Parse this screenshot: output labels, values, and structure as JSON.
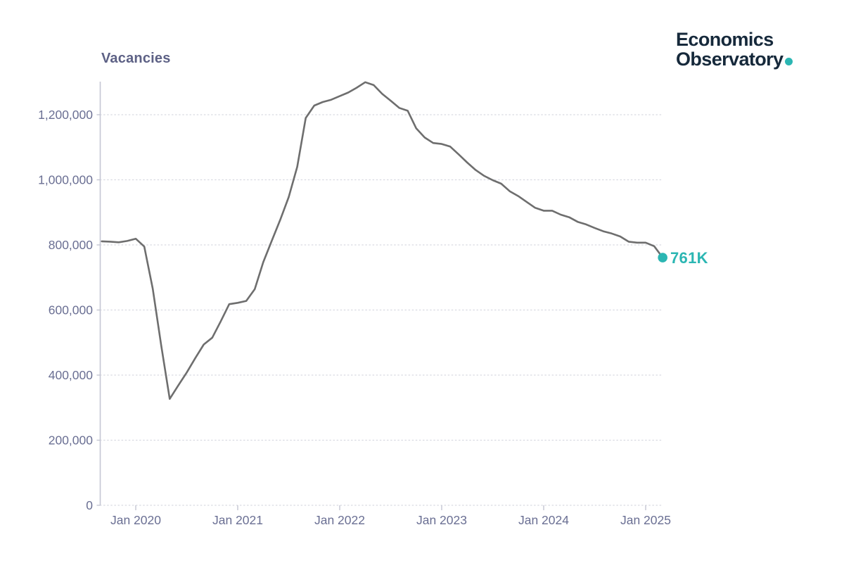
{
  "header": {
    "title": "Vacancies",
    "brand": {
      "line1": "Economics",
      "line2": "Observatory"
    }
  },
  "colors": {
    "accent_teal": "#2bb6b3",
    "line_gray": "#6e6e6e",
    "brand_navy": "#16293b",
    "axis_gray": "#c4c6d3",
    "grid_gray": "#d8d9e1",
    "label_purple_gray": "#6a6f93"
  },
  "chart_data": {
    "type": "line",
    "title": "Vacancies",
    "xlabel": "",
    "ylabel": "Vacancies",
    "legend": "none",
    "grid": "dotted horizontal",
    "ylim": [
      0,
      1300000
    ],
    "x_unit": "month",
    "x": [
      "2019-09",
      "2019-10",
      "2019-11",
      "2019-12",
      "2020-01",
      "2020-02",
      "2020-03",
      "2020-04",
      "2020-05",
      "2020-06",
      "2020-07",
      "2020-08",
      "2020-09",
      "2020-10",
      "2020-11",
      "2020-12",
      "2021-01",
      "2021-02",
      "2021-03",
      "2021-04",
      "2021-05",
      "2021-06",
      "2021-07",
      "2021-08",
      "2021-09",
      "2021-10",
      "2021-11",
      "2021-12",
      "2022-01",
      "2022-02",
      "2022-03",
      "2022-04",
      "2022-05",
      "2022-06",
      "2022-07",
      "2022-08",
      "2022-09",
      "2022-10",
      "2022-11",
      "2022-12",
      "2023-01",
      "2023-02",
      "2023-03",
      "2023-04",
      "2023-05",
      "2023-06",
      "2023-07",
      "2023-08",
      "2023-09",
      "2023-10",
      "2023-11",
      "2023-12",
      "2024-01",
      "2024-02",
      "2024-03",
      "2024-04",
      "2024-05",
      "2024-06",
      "2024-07",
      "2024-08",
      "2024-09",
      "2024-10",
      "2024-11",
      "2024-12",
      "2025-01",
      "2025-02",
      "2025-03"
    ],
    "values": [
      811000,
      810000,
      808000,
      812000,
      819000,
      795000,
      665000,
      490000,
      327000,
      368000,
      408000,
      452000,
      494000,
      515000,
      565000,
      618000,
      622000,
      628000,
      664000,
      747000,
      812000,
      877000,
      947000,
      1040000,
      1190000,
      1228000,
      1239000,
      1246000,
      1257000,
      1268000,
      1283000,
      1300000,
      1291000,
      1264000,
      1243000,
      1221000,
      1212000,
      1158000,
      1130000,
      1113000,
      1110000,
      1102000,
      1078000,
      1053000,
      1030000,
      1012000,
      999000,
      988000,
      965000,
      950000,
      932000,
      914000,
      905000,
      905000,
      893000,
      885000,
      871000,
      863000,
      852000,
      842000,
      835000,
      826000,
      810000,
      807000,
      807000,
      796000,
      761000
    ],
    "y_ticks": [
      {
        "value": 0,
        "label": "0"
      },
      {
        "value": 200000,
        "label": "200,000"
      },
      {
        "value": 400000,
        "label": "400,000"
      },
      {
        "value": 600000,
        "label": "600,000"
      },
      {
        "value": 800000,
        "label": "800,000"
      },
      {
        "value": 1000000,
        "label": "1,000,000"
      },
      {
        "value": 1200000,
        "label": "1,200,000"
      }
    ],
    "x_ticks": [
      {
        "month": "2020-01",
        "label": "Jan 2020"
      },
      {
        "month": "2021-01",
        "label": "Jan 2021"
      },
      {
        "month": "2022-01",
        "label": "Jan 2022"
      },
      {
        "month": "2023-01",
        "label": "Jan 2023"
      },
      {
        "month": "2024-01",
        "label": "Jan 2024"
      },
      {
        "month": "2025-01",
        "label": "Jan 2025"
      }
    ],
    "end_label": "761K",
    "end_value": 761000
  }
}
